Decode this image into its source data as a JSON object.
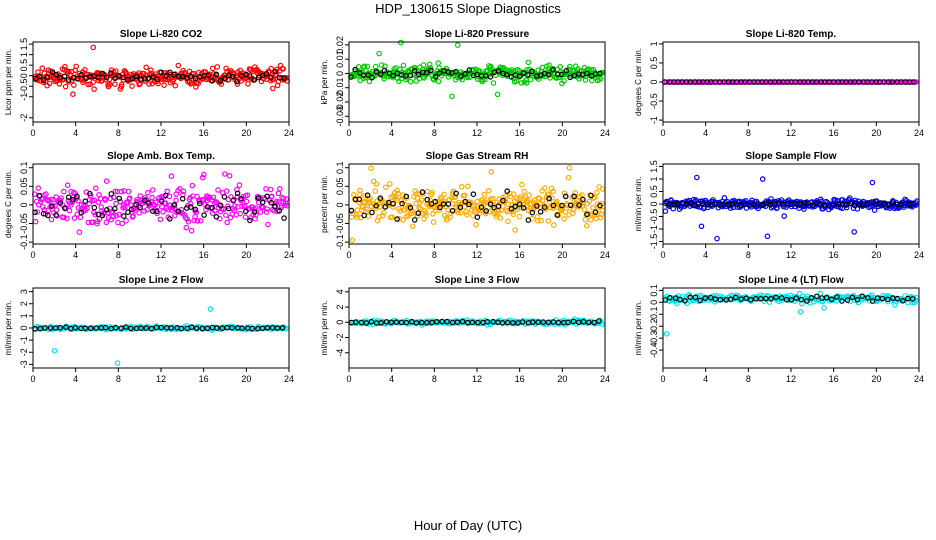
{
  "title": "HDP_130615  Slope Diagnostics",
  "xlabel": "Hour of Day (UTC)",
  "chart_data": [
    {
      "type": "scatter",
      "title": "Slope Li-820 CO2",
      "ylabel": "Licor ppm per min.",
      "xlim": [
        0,
        24
      ],
      "ylim": [
        -2.2,
        1.6
      ],
      "yticks": [
        -2,
        -1,
        -0.5,
        0,
        0.5,
        1,
        1.5
      ],
      "xticks": [
        0,
        4,
        8,
        12,
        16,
        20,
        24
      ],
      "series": [
        {
          "color": "#ff0000",
          "center": -0.05,
          "spread": 0.45,
          "outlier": 1.6,
          "count": 320
        },
        {
          "color": "#000000",
          "center": -0.05,
          "spread": 0.2,
          "count": 60
        }
      ]
    },
    {
      "type": "scatter",
      "title": "Slope Li-820 Pressure",
      "ylabel": "kPa per min.",
      "xlim": [
        0,
        24
      ],
      "ylim": [
        -0.034,
        0.022
      ],
      "yticks": [
        -0.03,
        -0.02,
        -0.01,
        0,
        0.01,
        0.02
      ],
      "xticks": [
        0,
        4,
        8,
        12,
        16,
        20,
        24
      ],
      "series": [
        {
          "color": "#00cc00",
          "center": 0.0,
          "spread": 0.006,
          "outlier": 0.03,
          "count": 320
        },
        {
          "color": "#000000",
          "center": 0.0,
          "spread": 0.003,
          "count": 60
        }
      ]
    },
    {
      "type": "scatter",
      "title": "Slope Li-820 Temp.",
      "ylabel": "degrees C per min.",
      "xlim": [
        0,
        24
      ],
      "ylim": [
        -1.05,
        1.05
      ],
      "yticks": [
        -1,
        -0.5,
        0,
        0.5,
        1
      ],
      "xticks": [
        0,
        4,
        8,
        12,
        16,
        20,
        24
      ],
      "series": [
        {
          "color": "#ff00ff",
          "center": 0.0,
          "spread": 0.0,
          "count": 150
        },
        {
          "color": "#000000",
          "center": 0.0,
          "spread": 0.0,
          "count": 60
        }
      ]
    },
    {
      "type": "scatter",
      "title": "Slope Amb. Box Temp.",
      "ylabel": "degrees C per min.",
      "xlim": [
        0,
        24
      ],
      "ylim": [
        -0.105,
        0.11
      ],
      "yticks": [
        -0.1,
        -0.05,
        0,
        0.05,
        0.1
      ],
      "xticks": [
        0,
        4,
        8,
        12,
        16,
        20,
        24
      ],
      "series": [
        {
          "color": "#ff00ff",
          "center": 0.0,
          "spread": 0.05,
          "outlier": 0.1,
          "count": 320
        },
        {
          "color": "#000000",
          "center": 0.0,
          "spread": 0.04,
          "count": 60
        }
      ]
    },
    {
      "type": "scatter",
      "title": "Slope Gas Stream RH",
      "ylabel": "percent per min.",
      "xlim": [
        0,
        24
      ],
      "ylim": [
        -0.105,
        0.11
      ],
      "yticks": [
        -0.1,
        -0.05,
        0,
        0.05,
        0.1
      ],
      "xticks": [
        0,
        4,
        8,
        12,
        16,
        20,
        24
      ],
      "series": [
        {
          "color": "#ffaa00",
          "center": 0.0,
          "spread": 0.05,
          "outlier": 0.1,
          "count": 340
        },
        {
          "color": "#000000",
          "center": 0.0,
          "spread": 0.04,
          "count": 60
        }
      ]
    },
    {
      "type": "scatter",
      "title": "Slope Sample Flow",
      "ylabel": "ml/min per min.",
      "xlim": [
        0,
        24
      ],
      "ylim": [
        -1.6,
        1.6
      ],
      "yticks": [
        -1.5,
        -1,
        -0.5,
        0,
        0.5,
        1,
        1.5
      ],
      "xticks": [
        0,
        4,
        8,
        12,
        16,
        20,
        24
      ],
      "series": [
        {
          "color": "#0000ff",
          "center": 0.0,
          "spread": 0.2,
          "outlier": 1.5,
          "count": 320
        },
        {
          "color": "#000000",
          "center": 0.0,
          "spread": 0.08,
          "count": 60
        }
      ]
    },
    {
      "type": "scatter",
      "title": "Slope Line 2 Flow",
      "ylabel": "ml/min per min.",
      "xlim": [
        0,
        24
      ],
      "ylim": [
        -3.3,
        3.3
      ],
      "yticks": [
        -3,
        -2,
        -1,
        0,
        1,
        2,
        3
      ],
      "xticks": [
        0,
        4,
        8,
        12,
        16,
        20,
        24
      ],
      "series": [
        {
          "color": "#00e5ee",
          "center": 0.0,
          "spread": 0.15,
          "outlier": 3.0,
          "count": 180
        },
        {
          "color": "#000000",
          "center": 0.0,
          "spread": 0.08,
          "count": 50
        }
      ]
    },
    {
      "type": "scatter",
      "title": "Slope Line 3 Flow",
      "ylabel": "ml/min per min.",
      "xlim": [
        0,
        24
      ],
      "ylim": [
        -6,
        4.5
      ],
      "yticks": [
        -4,
        -2,
        0,
        2,
        4
      ],
      "xticks": [
        0,
        4,
        8,
        12,
        16,
        20,
        24
      ],
      "series": [
        {
          "color": "#00e5ee",
          "center": 0.0,
          "spread": 0.3,
          "outlier": 5.0,
          "count": 200
        },
        {
          "color": "#000000",
          "center": 0.0,
          "spread": 0.15,
          "count": 50
        }
      ]
    },
    {
      "type": "scatter",
      "title": "Slope Line 4 (LT) Flow",
      "ylabel": "ml/min per min.",
      "xlim": [
        0,
        24
      ],
      "ylim": [
        -0.55,
        0.12
      ],
      "yticks": [
        -0.4,
        -0.3,
        -0.2,
        -0.1,
        0,
        0.1
      ],
      "xticks": [
        0,
        4,
        8,
        12,
        16,
        20,
        24
      ],
      "series": [
        {
          "color": "#00e5ee",
          "center": 0.03,
          "spread": 0.035,
          "outlier": 0.5,
          "count": 220
        },
        {
          "color": "#000000",
          "center": 0.03,
          "spread": 0.02,
          "count": 50
        }
      ]
    }
  ]
}
